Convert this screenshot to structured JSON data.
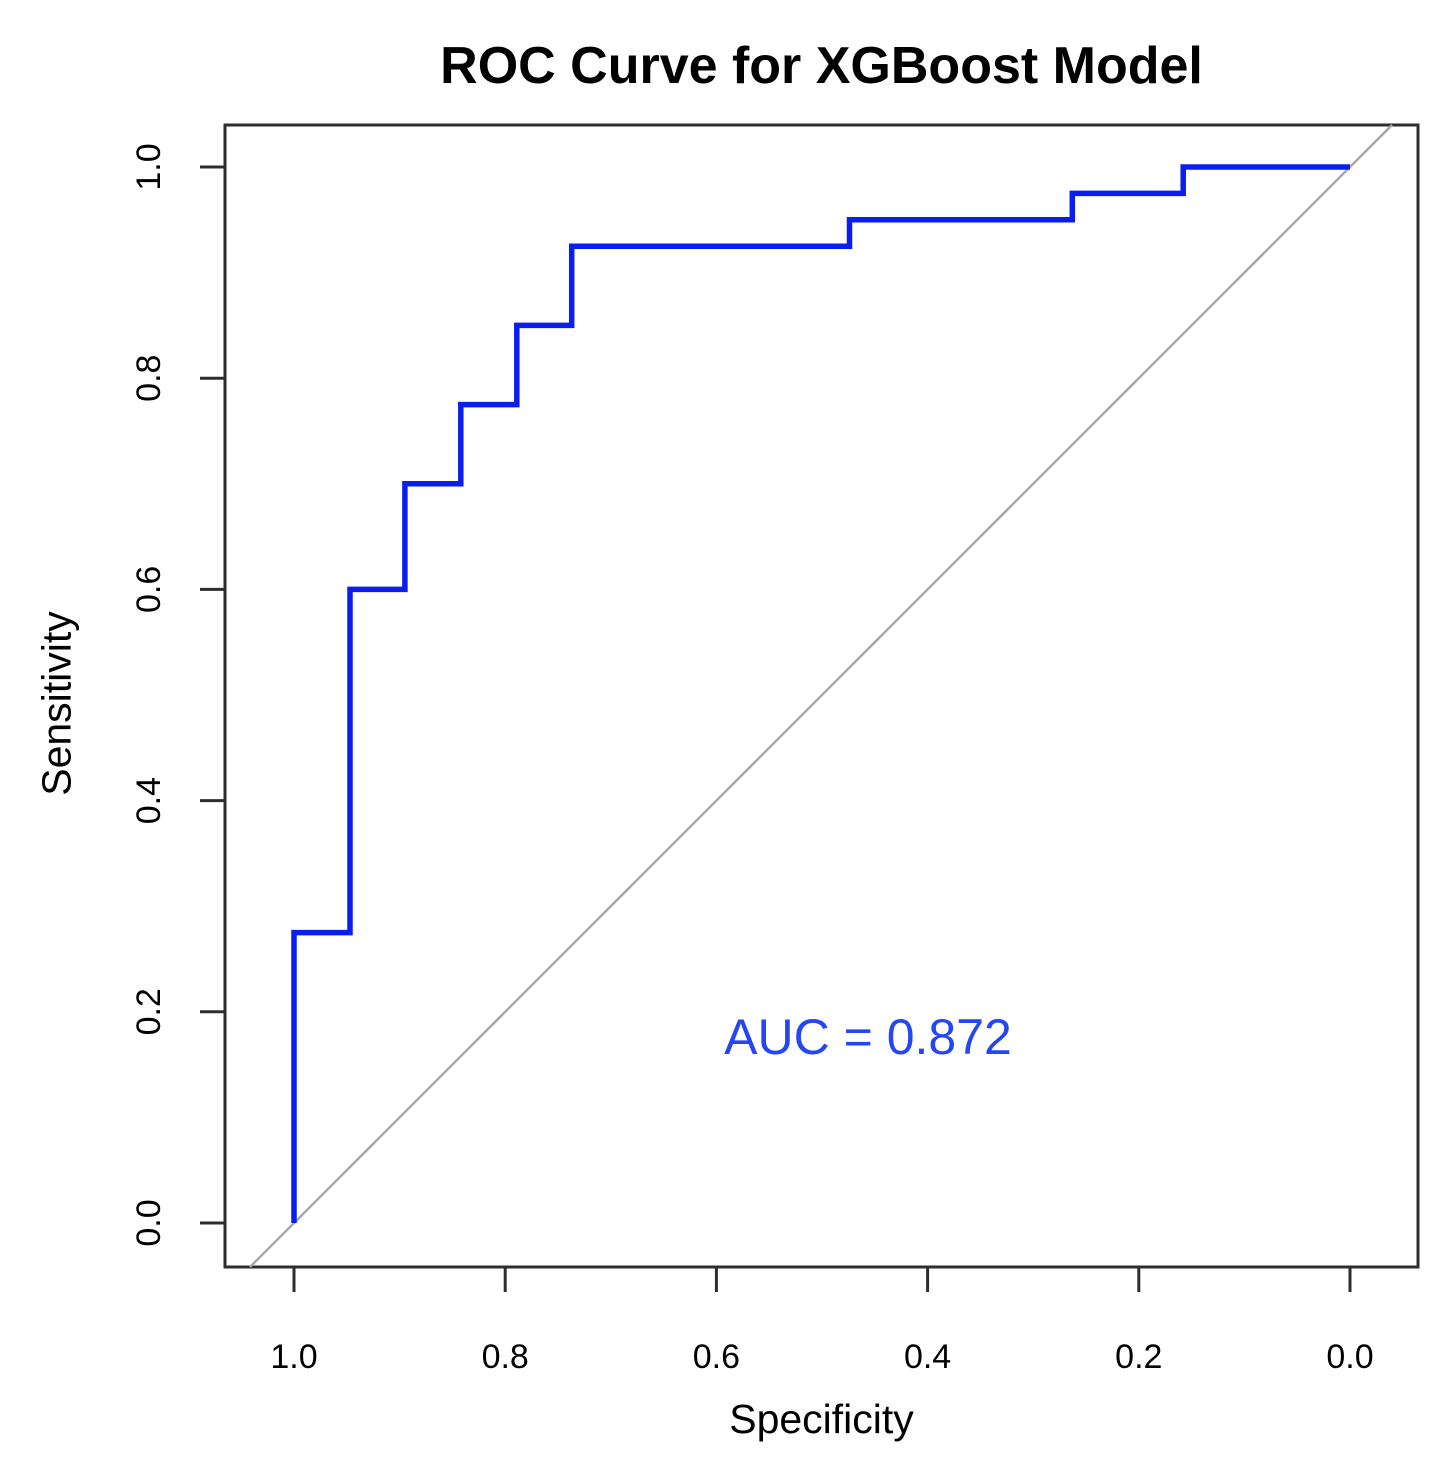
{
  "chart_data": {
    "type": "line",
    "subtype": "roc-step-curve",
    "title": "ROC Curve for XGBoost Model",
    "xlabel": "Specificity",
    "ylabel": "Sensitivity",
    "annotation": "AUC = 0.872",
    "auc": 0.872,
    "grid": false,
    "legend": "none",
    "x_axis": {
      "label": "Specificity",
      "reversed": true,
      "range": [
        1.0,
        0.0
      ],
      "ticks": [
        {
          "label": "1.0",
          "value": 1.0
        },
        {
          "label": "0.8",
          "value": 0.8
        },
        {
          "label": "0.6",
          "value": 0.6
        },
        {
          "label": "0.4",
          "value": 0.4
        },
        {
          "label": "0.2",
          "value": 0.2
        },
        {
          "label": "0.0",
          "value": 0.0
        }
      ]
    },
    "y_axis": {
      "label": "Sensitivity",
      "range": [
        0.0,
        1.0
      ],
      "ticks": [
        {
          "label": "0.0",
          "value": 0.0
        },
        {
          "label": "0.2",
          "value": 0.2
        },
        {
          "label": "0.4",
          "value": 0.4
        },
        {
          "label": "0.6",
          "value": 0.6
        },
        {
          "label": "0.8",
          "value": 0.8
        },
        {
          "label": "1.0",
          "value": 1.0
        }
      ]
    },
    "series": [
      {
        "name": "ROC curve (XGBoost model)",
        "color": "#0A1EF0",
        "points": [
          {
            "specificity": 1.0,
            "sensitivity": 0.0
          },
          {
            "specificity": 1.0,
            "sensitivity": 0.275
          },
          {
            "specificity": 0.947,
            "sensitivity": 0.275
          },
          {
            "specificity": 0.947,
            "sensitivity": 0.6
          },
          {
            "specificity": 0.895,
            "sensitivity": 0.6
          },
          {
            "specificity": 0.895,
            "sensitivity": 0.7
          },
          {
            "specificity": 0.842,
            "sensitivity": 0.7
          },
          {
            "specificity": 0.842,
            "sensitivity": 0.775
          },
          {
            "specificity": 0.789,
            "sensitivity": 0.775
          },
          {
            "specificity": 0.789,
            "sensitivity": 0.85
          },
          {
            "specificity": 0.737,
            "sensitivity": 0.85
          },
          {
            "specificity": 0.737,
            "sensitivity": 0.925
          },
          {
            "specificity": 0.474,
            "sensitivity": 0.925
          },
          {
            "specificity": 0.474,
            "sensitivity": 0.95
          },
          {
            "specificity": 0.263,
            "sensitivity": 0.95
          },
          {
            "specificity": 0.263,
            "sensitivity": 0.975
          },
          {
            "specificity": 0.158,
            "sensitivity": 0.975
          },
          {
            "specificity": 0.158,
            "sensitivity": 1.0
          },
          {
            "specificity": 0.0,
            "sensitivity": 1.0
          }
        ]
      }
    ],
    "reference_line": {
      "name": "chance diagonal",
      "color": "#A8A8A8",
      "from": {
        "specificity": 1.0,
        "sensitivity": 0.0
      },
      "to": {
        "specificity": 0.0,
        "sensitivity": 1.0
      },
      "extends_to_frame": true
    },
    "colors": {
      "curve": "#0A1EF0",
      "annotation": "#2547F2",
      "diagonal": "#A8A8A8",
      "frame": "#2E2E2E",
      "text": "#000000",
      "background": "#FFFFFF"
    }
  }
}
